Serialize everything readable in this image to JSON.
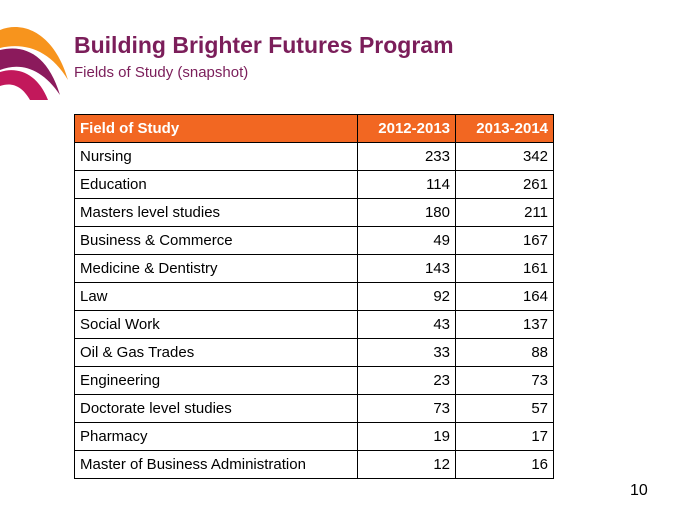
{
  "header": {
    "title": "Building Brighter Futures Program",
    "subtitle": "Fields of Study (snapshot)"
  },
  "colors": {
    "title": "#7b1e5a",
    "table_header": "#f26722",
    "logo_outer": "#f7941d",
    "logo_inner": "#8b1a5c"
  },
  "table": {
    "columns": [
      "Field of Study",
      "2012-2013",
      "2013-2014"
    ],
    "rows": [
      [
        "Nursing",
        "233",
        "342"
      ],
      [
        "Education",
        "114",
        "261"
      ],
      [
        "Masters level studies",
        "180",
        "211"
      ],
      [
        "Business & Commerce",
        "49",
        "167"
      ],
      [
        "Medicine & Dentistry",
        "143",
        "161"
      ],
      [
        "Law",
        "92",
        "164"
      ],
      [
        "Social Work",
        "43",
        "137"
      ],
      [
        "Oil & Gas Trades",
        "33",
        "88"
      ],
      [
        "Engineering",
        "23",
        "73"
      ],
      [
        "Doctorate level studies",
        "73",
        "57"
      ],
      [
        "Pharmacy",
        "19",
        "17"
      ],
      [
        "Master of Business Administration",
        "12",
        "16"
      ]
    ]
  },
  "slide_number": "10"
}
